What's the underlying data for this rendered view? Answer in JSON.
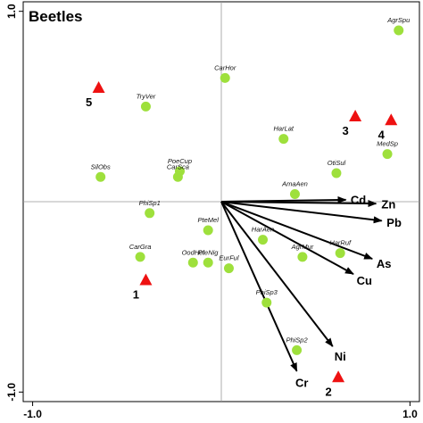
{
  "chart_data": {
    "type": "scatter",
    "title": "Beetles",
    "xlim": [
      -1.05,
      1.05
    ],
    "ylim": [
      -1.05,
      1.05
    ],
    "x_ticks": [
      {
        "value": -1.0,
        "label": "-1.0"
      },
      {
        "value": 1.0,
        "label": "1.0"
      }
    ],
    "y_ticks": [
      {
        "value": -1.0,
        "label": "-1.0"
      },
      {
        "value": 1.0,
        "label": "1.0"
      }
    ],
    "grid": false,
    "colors": {
      "species": "#9ee03c",
      "sites": "#ee1111",
      "arrows": "#000000",
      "axes": "#999999"
    },
    "species": [
      {
        "name": "AgrSpu",
        "x": 0.94,
        "y": 0.9
      },
      {
        "name": "CarHor",
        "x": 0.02,
        "y": 0.65
      },
      {
        "name": "TryVer",
        "x": -0.4,
        "y": 0.5
      },
      {
        "name": "HarLat",
        "x": 0.33,
        "y": 0.33
      },
      {
        "name": "MedSp",
        "x": 0.88,
        "y": 0.25
      },
      {
        "name": "PoeCup",
        "x": -0.22,
        "y": 0.16
      },
      {
        "name": "CarSca",
        "x": -0.23,
        "y": 0.13
      },
      {
        "name": "SilObs",
        "x": -0.64,
        "y": 0.13
      },
      {
        "name": "OtiSul",
        "x": 0.61,
        "y": 0.15
      },
      {
        "name": "AmaAen",
        "x": 0.39,
        "y": 0.04
      },
      {
        "name": "PhiSp1",
        "x": -0.38,
        "y": -0.06
      },
      {
        "name": "PteMel",
        "x": -0.07,
        "y": -0.15
      },
      {
        "name": "HarAen",
        "x": 0.22,
        "y": -0.2
      },
      {
        "name": "HarRuf",
        "x": 0.63,
        "y": -0.27
      },
      {
        "name": "AgrMur",
        "x": 0.43,
        "y": -0.29
      },
      {
        "name": "CarGra",
        "x": -0.43,
        "y": -0.29
      },
      {
        "name": "OodHel",
        "x": -0.15,
        "y": -0.32
      },
      {
        "name": "PteNig",
        "x": -0.07,
        "y": -0.32
      },
      {
        "name": "EurFul",
        "x": 0.04,
        "y": -0.35
      },
      {
        "name": "PhiSp3",
        "x": 0.24,
        "y": -0.53
      },
      {
        "name": "PhiSp2",
        "x": 0.4,
        "y": -0.78
      }
    ],
    "sites": [
      {
        "name": "1",
        "x": -0.4,
        "y": -0.41
      },
      {
        "name": "2",
        "x": 0.62,
        "y": -0.92
      },
      {
        "name": "3",
        "x": 0.71,
        "y": 0.45
      },
      {
        "name": "4",
        "x": 0.9,
        "y": 0.43
      },
      {
        "name": "5",
        "x": -0.65,
        "y": 0.6
      }
    ],
    "env_vectors": [
      {
        "name": "Cd",
        "x": 0.66,
        "y": 0.01
      },
      {
        "name": "Zn",
        "x": 0.82,
        "y": -0.01
      },
      {
        "name": "Pb",
        "x": 0.85,
        "y": -0.1
      },
      {
        "name": "As",
        "x": 0.8,
        "y": -0.3
      },
      {
        "name": "Cu",
        "x": 0.7,
        "y": -0.38
      },
      {
        "name": "Ni",
        "x": 0.59,
        "y": -0.76
      },
      {
        "name": "Cr",
        "x": 0.4,
        "y": -0.89
      }
    ]
  }
}
